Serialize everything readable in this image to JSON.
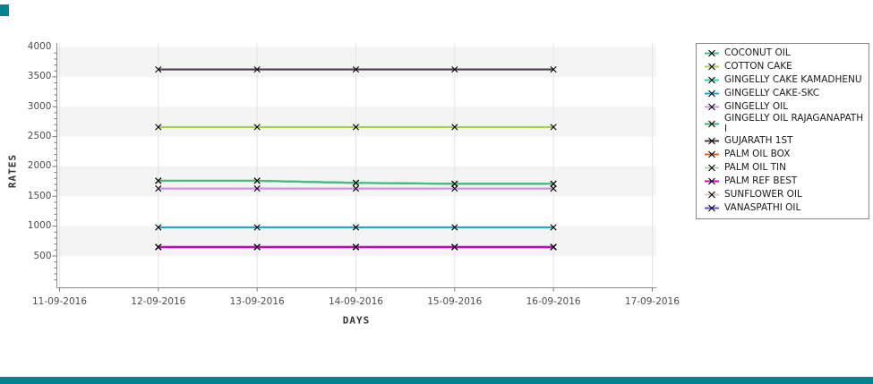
{
  "page": {
    "accent_color": "#00838f"
  },
  "chart_data": {
    "type": "line",
    "title": "",
    "xlabel": "DAYS",
    "ylabel": "RATES",
    "marker": "x",
    "grid": true,
    "zebra_bands": true,
    "legend_position": "right",
    "ylim": [
      0,
      4050
    ],
    "y_ticks": [
      4000,
      3500,
      3000,
      2500,
      2000,
      1500,
      1000,
      500
    ],
    "x_ticks": [
      "11-09-2016",
      "12-09-2016",
      "13-09-2016",
      "14-09-2016",
      "15-09-2016",
      "16-09-2016",
      "17-09-2016"
    ],
    "categories": [
      "12-09-2016",
      "13-09-2016",
      "14-09-2016",
      "15-09-2016",
      "16-09-2016"
    ],
    "series": [
      {
        "name": "COCONUT OIL",
        "color": "#45bd7e",
        "values": [
          1760,
          1760,
          1725,
          1710,
          1710
        ],
        "z": 10
      },
      {
        "name": "COTTON CAKE",
        "color": "#a8cf4f",
        "values": [
          2660,
          2660,
          2660,
          2660,
          2660
        ],
        "z": 7
      },
      {
        "name": "GINGELLY CAKE KAMADHENU",
        "color": "#36d1a0",
        "values": [
          1760,
          1760,
          1725,
          1710,
          1710
        ],
        "z": 1
      },
      {
        "name": "GINGELLY CAKE-SKC",
        "color": "#2ba6cb",
        "values": [
          980,
          980,
          980,
          980,
          980
        ],
        "z": 8
      },
      {
        "name": "GINGELLY OIL",
        "color": "#cf8fe8",
        "values": [
          1630,
          1630,
          1630,
          1630,
          1630
        ],
        "z": 9
      },
      {
        "name": "GINGELLY OIL RAJAGANAPATHI",
        "color": "#3eb371",
        "values": [
          1760,
          1760,
          1725,
          1710,
          1710
        ],
        "z": 2
      },
      {
        "name": "GUJARATH 1ST",
        "color": "#4e3a4e",
        "values": [
          3625,
          3625,
          3625,
          3625,
          3625
        ],
        "z": 11
      },
      {
        "name": "PALM OIL BOX",
        "color": "#e2611f",
        "values": [
          650,
          650,
          650,
          650,
          650
        ],
        "z": 3
      },
      {
        "name": "PALM OIL TIN",
        "color": "#abd9ab",
        "values": [
          650,
          650,
          650,
          650,
          650
        ],
        "z": 4
      },
      {
        "name": "PALM REF BEST",
        "color": "#cc00cc",
        "values": [
          650,
          650,
          650,
          650,
          650
        ],
        "z": 12
      },
      {
        "name": "SUNFLOWER OIL",
        "color": "#e2c4b4",
        "values": [
          650,
          650,
          650,
          650,
          650
        ],
        "z": 5
      },
      {
        "name": "VANASPATHI OIL",
        "color": "#5b52d6",
        "values": [
          650,
          650,
          650,
          650,
          650
        ],
        "z": 6
      }
    ]
  }
}
